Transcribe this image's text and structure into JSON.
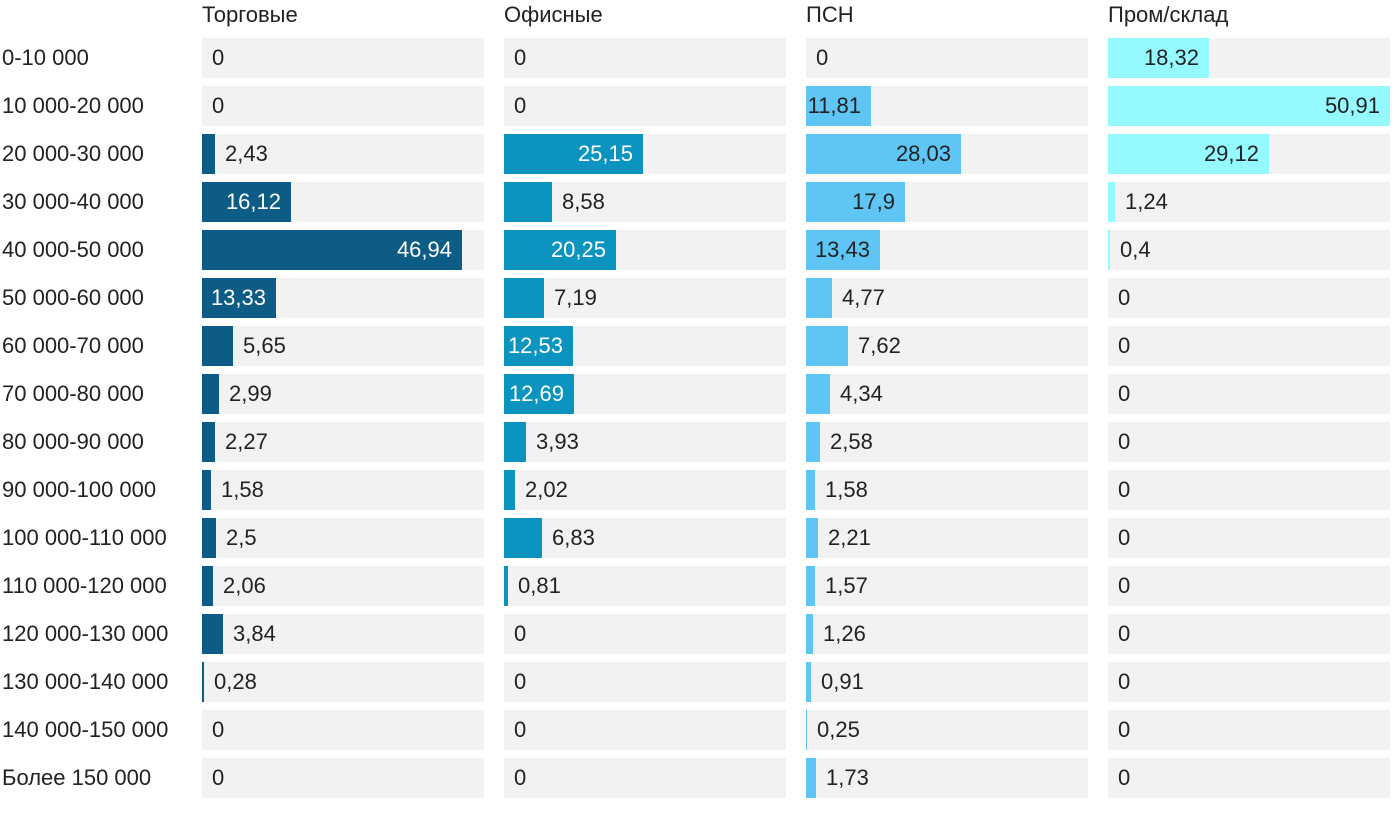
{
  "chart_data": {
    "type": "bar",
    "orientation": "horizontal",
    "layout": "small-multiples",
    "xlim": [
      0,
      50.91
    ],
    "categories": [
      "0-10 000",
      "10 000-20 000",
      "20 000-30 000",
      "30 000-40 000",
      "40 000-50 000",
      "50 000-60 000",
      "60 000-70 000",
      "70 000-80 000",
      "80 000-90 000",
      "90 000-100 000",
      "100 000-110 000",
      "110 000-120 000",
      "120 000-130 000",
      "130 000-140 000",
      "140 000-150 000",
      "Более 150 000"
    ],
    "series": [
      {
        "name": "Торговые",
        "color": "#0d5c85",
        "values": [
          0,
          0,
          2.43,
          16.12,
          46.94,
          13.33,
          5.65,
          2.99,
          2.27,
          1.58,
          2.5,
          2.06,
          3.84,
          0.28,
          0,
          0
        ],
        "labels": [
          "0",
          "0",
          "2,43",
          "16,12",
          "46,94",
          "13,33",
          "5,65",
          "2,99",
          "2,27",
          "1,58",
          "2,5",
          "2,06",
          "3,84",
          "0,28",
          "0",
          "0"
        ]
      },
      {
        "name": "Офисные",
        "color": "#0b94c0",
        "values": [
          0,
          0,
          25.15,
          8.58,
          20.25,
          7.19,
          12.53,
          12.69,
          3.93,
          2.02,
          6.83,
          0.81,
          0,
          0,
          0,
          0
        ],
        "labels": [
          "0",
          "0",
          "25,15",
          "8,58",
          "20,25",
          "7,19",
          "12,53",
          "12,69",
          "3,93",
          "2,02",
          "6,83",
          "0,81",
          "0",
          "0",
          "0",
          "0"
        ]
      },
      {
        "name": "ПСН",
        "color": "#5ec5f4",
        "values": [
          0,
          11.81,
          28.03,
          17.9,
          13.43,
          4.77,
          7.62,
          4.34,
          2.58,
          1.58,
          2.21,
          1.57,
          1.26,
          0.91,
          0.25,
          1.73
        ],
        "labels": [
          "0",
          "11,81",
          "28,03",
          "17,9",
          "13,43",
          "4,77",
          "7,62",
          "4,34",
          "2,58",
          "1,58",
          "2,21",
          "1,57",
          "1,26",
          "0,91",
          "0,25",
          "1,73"
        ]
      },
      {
        "name": "Пром/склад",
        "color": "#95faff",
        "values": [
          18.32,
          50.91,
          29.12,
          1.24,
          0.4,
          0,
          0,
          0,
          0,
          0,
          0,
          0,
          0,
          0,
          0,
          0
        ],
        "labels": [
          "18,32",
          "50,91",
          "29,12",
          "1,24",
          "0,4",
          "0",
          "0",
          "0",
          "0",
          "0",
          "0",
          "0",
          "0",
          "0",
          "0",
          "0"
        ]
      }
    ]
  }
}
